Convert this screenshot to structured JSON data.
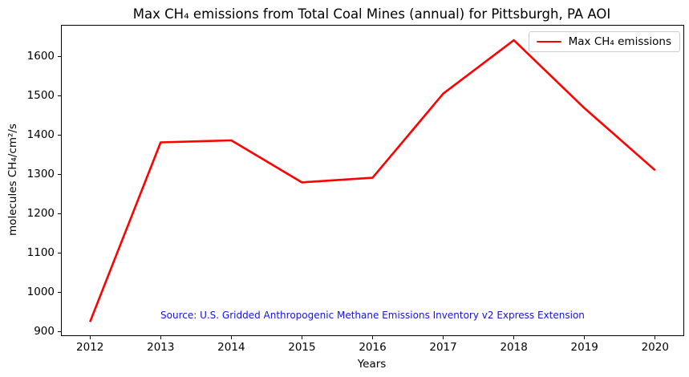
{
  "source_note": "Source: U.S. Gridded Anthropogenic Methane Emissions Inventory v2 Express Extension",
  "legend": {
    "label": "Max CH₄ emissions"
  },
  "colors": {
    "line": "#ff0000",
    "source_text": "#1414dd",
    "axis": "#000000",
    "legend_border": "#cccccc",
    "background": "#ffffff",
    "text": "#000000"
  },
  "chart_data": {
    "type": "line",
    "title": "Max CH₄ emissions from Total Coal Mines (annual) for Pittsburgh, PA AOI",
    "xlabel": "Years",
    "ylabel": "molecules CH₄/cm²/s",
    "x": [
      2012,
      2013,
      2014,
      2015,
      2016,
      2017,
      2018,
      2019,
      2020
    ],
    "series": [
      {
        "name": "Max CH₄ emissions",
        "color": "#ff0000",
        "values": [
          924,
          1381,
          1386,
          1279,
          1291,
          1505,
          1641,
          1468,
          1310
        ]
      }
    ],
    "xticks": [
      2012,
      2013,
      2014,
      2015,
      2016,
      2017,
      2018,
      2019,
      2020
    ],
    "yticks": [
      900,
      1000,
      1100,
      1200,
      1300,
      1400,
      1500,
      1600
    ],
    "xlim": [
      2011.6,
      2020.4
    ],
    "ylim": [
      890,
      1678
    ],
    "grid": false,
    "legend_position": "upper right"
  }
}
